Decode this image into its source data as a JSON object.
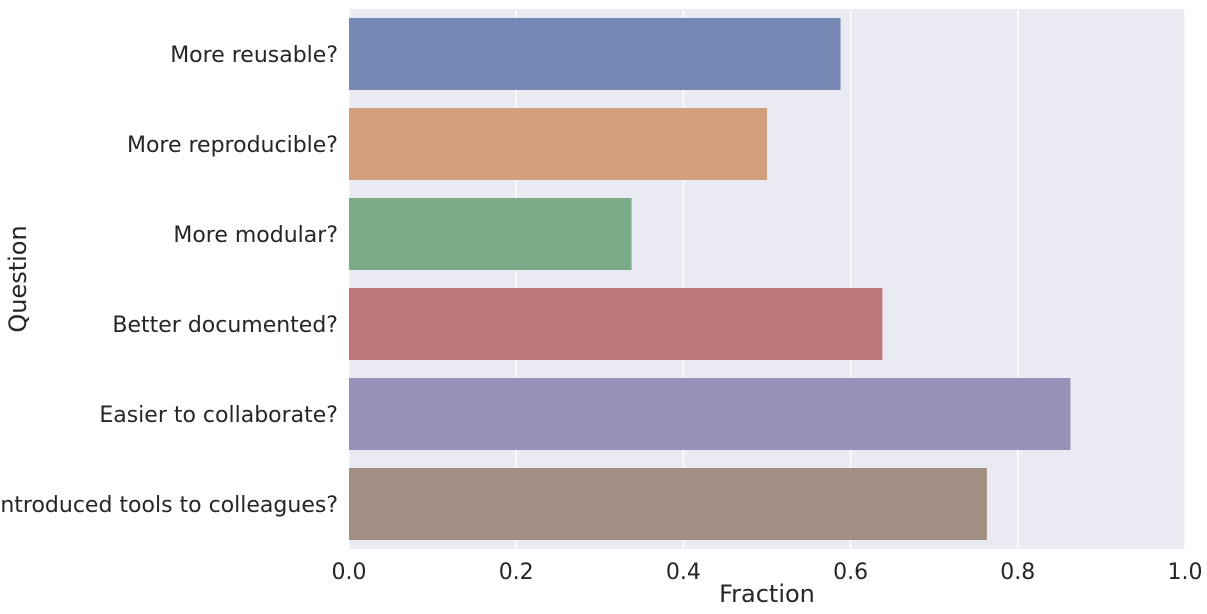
{
  "chart_data": {
    "type": "bar",
    "orientation": "horizontal",
    "title": "",
    "xlabel": "Fraction",
    "ylabel": "Question",
    "xlim": [
      0.0,
      1.0
    ],
    "xticks": [
      "0.0",
      "0.2",
      "0.4",
      "0.6",
      "0.8",
      "1.0"
    ],
    "categories": [
      "More reusable?",
      "More reproducible?",
      "More modular?",
      "Better documented?",
      "Easier to collaborate?",
      "Introduced tools to colleagues?"
    ],
    "values": [
      0.588,
      0.5,
      0.338,
      0.638,
      0.863,
      0.763
    ],
    "colors": [
      "#7589b4",
      "#d29e7c",
      "#7aac87",
      "#bd767a",
      "#9990b8",
      "#a08f82"
    ],
    "background_color": "#eaeaf2",
    "grid": true
  }
}
